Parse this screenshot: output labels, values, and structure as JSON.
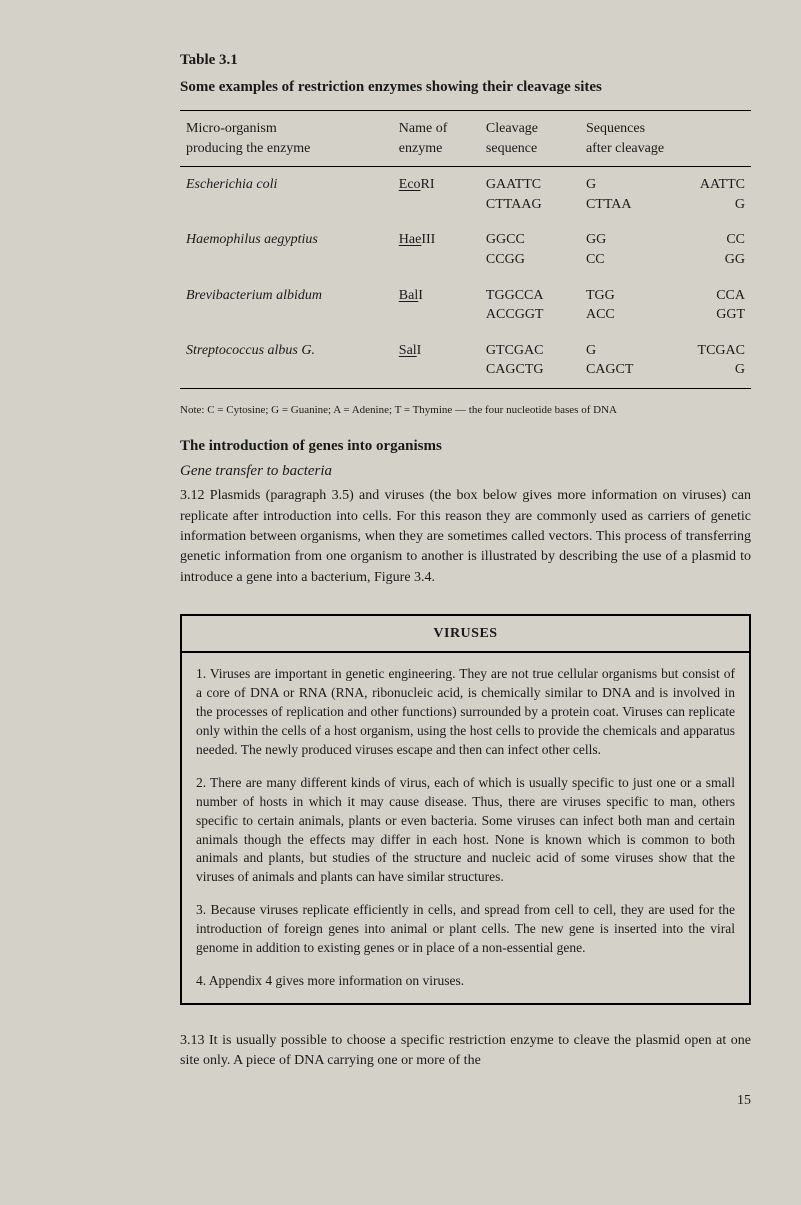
{
  "table": {
    "number": "Table 3.1",
    "title": "Some examples of restriction enzymes showing their cleavage sites",
    "headers": {
      "c1_line1": "Micro-organism",
      "c1_line2": "producing the enzyme",
      "c2_line1": "Name of",
      "c2_line2": "enzyme",
      "c3_line1": "Cleavage",
      "c3_line2": "sequence",
      "c4_line1": "Sequences",
      "c4_line2": "after cleavage"
    },
    "rows": [
      {
        "organism": "Escherichia coli",
        "enzyme_underlined": "Eco",
        "enzyme_rest": "RI",
        "cleavage_line1": "GAATTC",
        "cleavage_line2": "CTTAAG",
        "after_col1_line1": "G",
        "after_col1_line2": "CTTAA",
        "after_col2_line1": "AATTC",
        "after_col2_line2": "G"
      },
      {
        "organism": "Haemophilus aegyptius",
        "enzyme_underlined": "Hae",
        "enzyme_rest": "III",
        "cleavage_line1": "GGCC",
        "cleavage_line2": "CCGG",
        "after_col1_line1": "GG",
        "after_col1_line2": "CC",
        "after_col2_line1": "CC",
        "after_col2_line2": "GG"
      },
      {
        "organism": "Brevibacterium albidum",
        "enzyme_underlined": "Bal",
        "enzyme_rest": "I",
        "cleavage_line1": "TGGCCA",
        "cleavage_line2": "ACCGGT",
        "after_col1_line1": "TGG",
        "after_col1_line2": "ACC",
        "after_col2_line1": "CCA",
        "after_col2_line2": "GGT"
      },
      {
        "organism": "Streptococcus albus G.",
        "enzyme_underlined": "Sal",
        "enzyme_rest": "I",
        "cleavage_line1": "GTCGAC",
        "cleavage_line2": "CAGCTG",
        "after_col1_line1": "G",
        "after_col1_line2": "CAGCT",
        "after_col2_line1": "TCGAC",
        "after_col2_line2": "G"
      }
    ],
    "note": "Note: C = Cytosine;  G = Guanine;  A = Adenine;  T = Thymine — the four nucleotide bases of DNA"
  },
  "section_heading": "The introduction of genes into organisms",
  "subsection_heading": "Gene transfer to bacteria",
  "body_para": "3.12  Plasmids (paragraph 3.5) and viruses (the box below gives more information on viruses) can replicate after introduction into cells. For this reason they are commonly used as carriers of genetic information between organisms, when they are sometimes called vectors. This process of transferring genetic information from one organism to another is illustrated by describing the use of a plasmid to introduce a gene into a bacterium, Figure 3.4.",
  "viruses": {
    "header": "VIRUSES",
    "p1": "1.  Viruses are important in genetic engineering. They are not true cellular organisms but consist of a core of DNA or RNA (RNA, ribonucleic acid, is chemically similar to DNA and is involved in the processes of replication and other functions) surrounded by a protein coat. Viruses can replicate only within the cells of a host organism, using the host cells to provide the chemicals and apparatus needed. The newly produced viruses escape and then can infect other cells.",
    "p2": "2.  There are many different kinds of virus, each of which is usually specific to just one or a small number of hosts in which it may cause disease. Thus, there are viruses specific to man, others specific to certain animals, plants or even bacteria. Some viruses can infect both man and certain animals though the effects may differ in each host. None is known which is common to both animals and plants, but studies of the structure and nucleic acid of some viruses show that the viruses of animals and plants can have similar structures.",
    "p3": "3.  Because viruses replicate efficiently in cells, and spread from cell to cell, they are used for the introduction of foreign genes into animal or plant cells. The new gene is inserted into the viral genome in addition to existing genes or in place of a non-essential gene.",
    "p4": "4.  Appendix 4 gives more information on viruses."
  },
  "closing_para": "3.13  It is usually possible to choose a specific restriction enzyme to cleave the plasmid open at one site only. A piece of DNA carrying one or more of the",
  "page_number": "15"
}
